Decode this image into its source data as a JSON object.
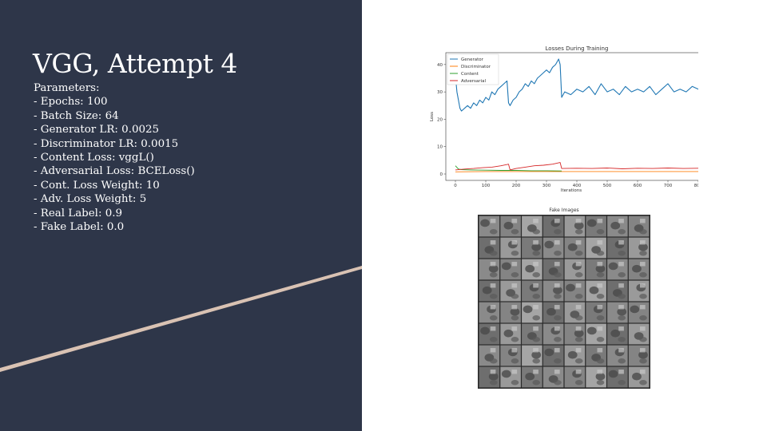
{
  "slide": {
    "title": "VGG, Attempt 4",
    "params_heading": "Parameters:",
    "params": [
      "- Epochs: 100",
      "- Batch Size: 64",
      "- Generator LR: 0.0025",
      "- Discriminator LR: 0.0015",
      "- Content Loss: vggL()",
      "- Adversarial Loss: BCELoss()",
      "- Cont. Loss Weight: 10",
      "- Adv. Loss Weight: 5",
      "- Real Label: 0.9",
      "- Fake Label: 0.0"
    ],
    "colors": {
      "panel": "#2e3649",
      "stripe": "#d9c2b3",
      "text": "#ffffff"
    }
  },
  "chart_data": [
    {
      "type": "line",
      "title": "Losses During Training",
      "xlabel": "Iterations",
      "ylabel": "Loss",
      "xlim": [
        0,
        800
      ],
      "ylim": [
        0,
        42
      ],
      "xticks": [
        0,
        100,
        200,
        300,
        400,
        500,
        600,
        700,
        800
      ],
      "yticks": [
        0,
        10,
        20,
        30,
        40
      ],
      "grid": false,
      "legend_position": "top-left",
      "series": [
        {
          "name": "Generator",
          "color": "#1f77b4",
          "x": [
            0,
            5,
            10,
            15,
            20,
            30,
            40,
            50,
            60,
            70,
            80,
            90,
            100,
            110,
            120,
            130,
            140,
            150,
            160,
            170,
            175,
            180,
            190,
            200,
            210,
            220,
            230,
            240,
            250,
            260,
            270,
            280,
            290,
            300,
            310,
            320,
            330,
            340,
            345,
            350,
            360,
            380,
            400,
            420,
            440,
            460,
            480,
            500,
            520,
            540,
            560,
            580,
            600,
            620,
            640,
            660,
            680,
            700,
            720,
            740,
            760,
            780,
            800
          ],
          "values": [
            36,
            30,
            27,
            24,
            23,
            24,
            25,
            24,
            26,
            25,
            27,
            26,
            28,
            27,
            30,
            29,
            31,
            32,
            33,
            34,
            26,
            25,
            27,
            28,
            30,
            31,
            33,
            32,
            34,
            33,
            35,
            36,
            37,
            38,
            37,
            39,
            40,
            42,
            40,
            28,
            30,
            29,
            31,
            30,
            32,
            29,
            33,
            30,
            31,
            29,
            32,
            30,
            31,
            30,
            32,
            29,
            31,
            33,
            30,
            31,
            30,
            32,
            31
          ]
        },
        {
          "name": "Discriminator",
          "color": "#ff7f0e",
          "x": [
            0,
            100,
            200,
            300,
            400,
            500,
            600,
            700,
            800
          ],
          "values": [
            0.8,
            0.9,
            0.9,
            0.9,
            0.9,
            0.9,
            0.9,
            0.9,
            0.9
          ]
        },
        {
          "name": "Content",
          "color": "#2ca02c",
          "x": [
            0,
            10,
            20,
            50,
            100,
            150,
            200,
            250,
            300,
            350
          ],
          "values": [
            3.0,
            1.8,
            1.6,
            1.5,
            1.4,
            1.3,
            1.3,
            1.2,
            1.2,
            1.1
          ]
        },
        {
          "name": "Adversarial",
          "color": "#d62728",
          "x": [
            0,
            30,
            60,
            90,
            120,
            150,
            175,
            180,
            200,
            230,
            260,
            290,
            320,
            345,
            350,
            400,
            450,
            500,
            550,
            600,
            650,
            700,
            750,
            800
          ],
          "values": [
            1.5,
            1.8,
            2.0,
            2.3,
            2.5,
            3.0,
            3.6,
            1.5,
            2.0,
            2.5,
            3.0,
            3.2,
            3.6,
            4.2,
            2.0,
            2.1,
            2.0,
            2.2,
            1.9,
            2.1,
            2.0,
            2.2,
            2.0,
            2.1
          ]
        }
      ]
    },
    {
      "type": "heatmap",
      "title": "Fake Images",
      "rows": 8,
      "cols": 8
    }
  ]
}
